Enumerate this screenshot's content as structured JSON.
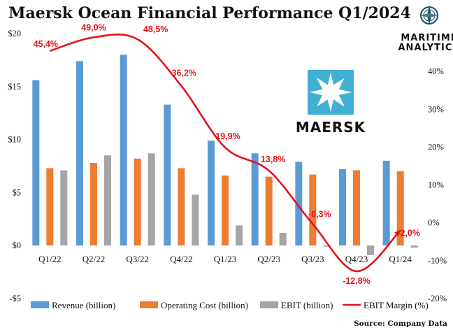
{
  "brand": {
    "line1": "MARITIME",
    "line2": "ANALYTICA",
    "logo_text": "MAERSK",
    "logo_color": "#42b0d5"
  },
  "source": "Source: Company Data",
  "colors": {
    "revenue": "#5b9bd5",
    "cost": "#ed7d31",
    "ebit": "#a5a5a5",
    "margin": "#e8111b"
  },
  "chart_data": {
    "type": "bar",
    "title": "Maersk Ocean  Financial Performance Q1/2024",
    "categories": [
      "Q1/22",
      "Q2/22",
      "Q3/22",
      "Q4/22",
      "Q1/23",
      "Q2/23",
      "Q3/23",
      "Q4/23",
      "Q1/24"
    ],
    "series": [
      {
        "name": "Revenue (billion)",
        "values": [
          15.6,
          17.4,
          18.0,
          13.3,
          9.9,
          8.7,
          7.9,
          7.2,
          8.0
        ]
      },
      {
        "name": "Operating Cost  (billion)",
        "values": [
          7.3,
          7.8,
          8.2,
          7.3,
          6.6,
          6.5,
          6.7,
          7.1,
          7.0
        ]
      },
      {
        "name": "EBIT (billion)",
        "values": [
          7.1,
          8.5,
          8.7,
          4.8,
          1.9,
          1.2,
          -0.1,
          -0.9,
          -0.2
        ]
      }
    ],
    "line_series": {
      "name": "EBIT Margin (%)",
      "values": [
        45.4,
        49.0,
        48.5,
        36.2,
        19.9,
        13.8,
        -0.3,
        -12.8,
        -2.0
      ],
      "labels": [
        "45,4%",
        "49,0%",
        "48,5%",
        "36,2%",
        "19,9%",
        "13,8%",
        "-0,3%",
        "-12,8%",
        "-2,0%"
      ]
    },
    "ylim_left": [
      -5,
      20
    ],
    "yticks_left": [
      {
        "value": -5,
        "label": "-$5"
      },
      {
        "value": 0,
        "label": "$0"
      },
      {
        "value": 5,
        "label": "$5"
      },
      {
        "value": 10,
        "label": "$10"
      },
      {
        "value": 15,
        "label": "$15"
      },
      {
        "value": 20,
        "label": "$20"
      }
    ],
    "ylim_right": [
      -20,
      50
    ],
    "yticks_right": [
      {
        "value": -20,
        "label": "-20%"
      },
      {
        "value": -10,
        "label": "-10%"
      },
      {
        "value": 0,
        "label": "0%"
      },
      {
        "value": 10,
        "label": "10%"
      },
      {
        "value": 20,
        "label": "20%"
      },
      {
        "value": 30,
        "label": "30%"
      },
      {
        "value": 40,
        "label": "40%"
      }
    ],
    "grid": false,
    "legend": "bottom"
  }
}
